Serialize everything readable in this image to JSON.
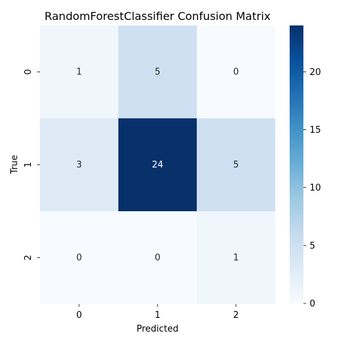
{
  "chart_data": {
    "type": "heatmap",
    "title": "RandomForestClassifier Confusion Matrix",
    "xlabel": "Predicted",
    "ylabel": "True",
    "x_categories": [
      "0",
      "1",
      "2"
    ],
    "y_categories": [
      "0",
      "1",
      "2"
    ],
    "values": [
      [
        1,
        5,
        0
      ],
      [
        3,
        24,
        5
      ],
      [
        0,
        0,
        1
      ]
    ],
    "colormap": "Blues",
    "vmin": 0,
    "vmax": 24,
    "colorbar_ticks": [
      "0",
      "5",
      "10",
      "15",
      "20"
    ],
    "colorbar_tick_values": [
      0,
      5,
      10,
      15,
      20
    ]
  }
}
